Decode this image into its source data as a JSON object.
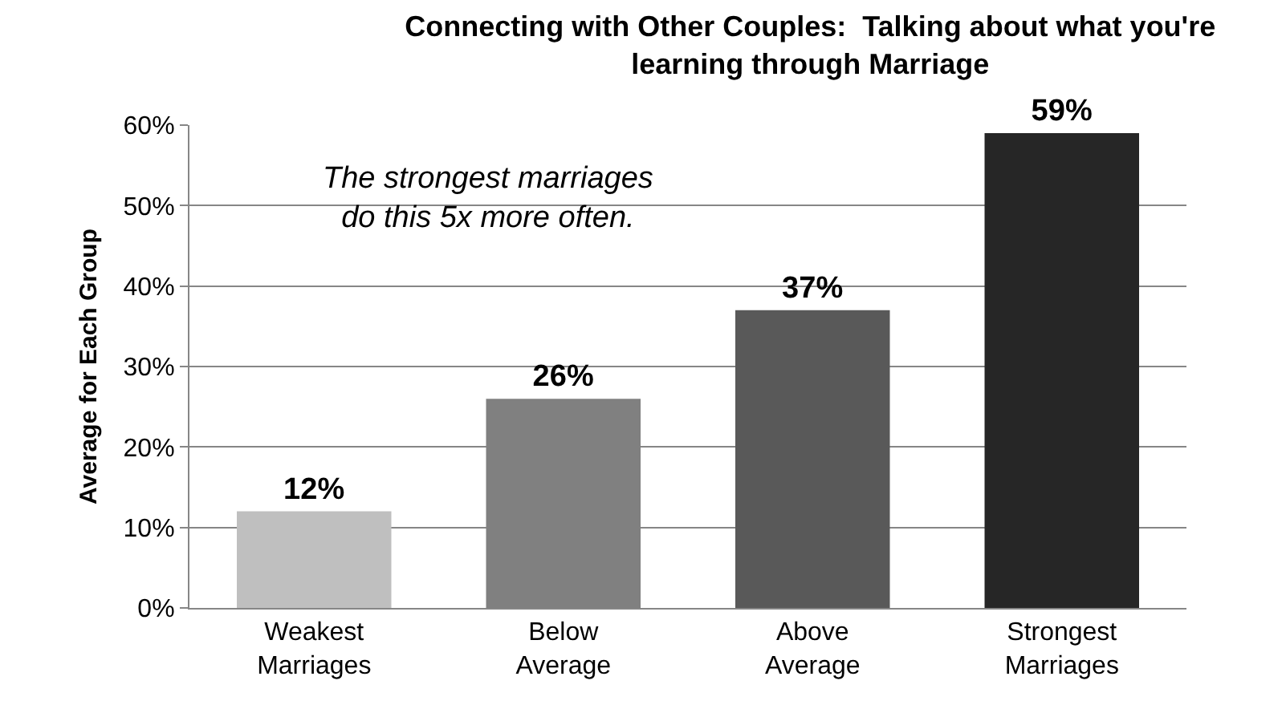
{
  "chart_data": {
    "type": "bar",
    "title": "Connecting with Other Couples:  Talking about what you're\nlearning through Marriage",
    "ylabel": "Average for Each Group",
    "categories": [
      "Weakest\nMarriages",
      "Below\nAverage",
      "Above\nAverage",
      "Strongest\nMarriages"
    ],
    "values": [
      12,
      26,
      37,
      59
    ],
    "colors": [
      "#bfbfbf",
      "#808080",
      "#595959",
      "#262626"
    ],
    "value_labels": [
      "12%",
      "26%",
      "37%",
      "59%"
    ],
    "ylim": [
      0,
      60
    ],
    "yticks": [
      {
        "value": 0,
        "label": "0%"
      },
      {
        "value": 10,
        "label": "10%"
      },
      {
        "value": 20,
        "label": "20%"
      },
      {
        "value": 30,
        "label": "30%"
      },
      {
        "value": 40,
        "label": "40%"
      },
      {
        "value": 50,
        "label": "50%"
      },
      {
        "value": 60,
        "label": "60%"
      }
    ],
    "grid": "y",
    "annotations": [
      "The strongest marriages\ndo this 5x more often."
    ]
  }
}
